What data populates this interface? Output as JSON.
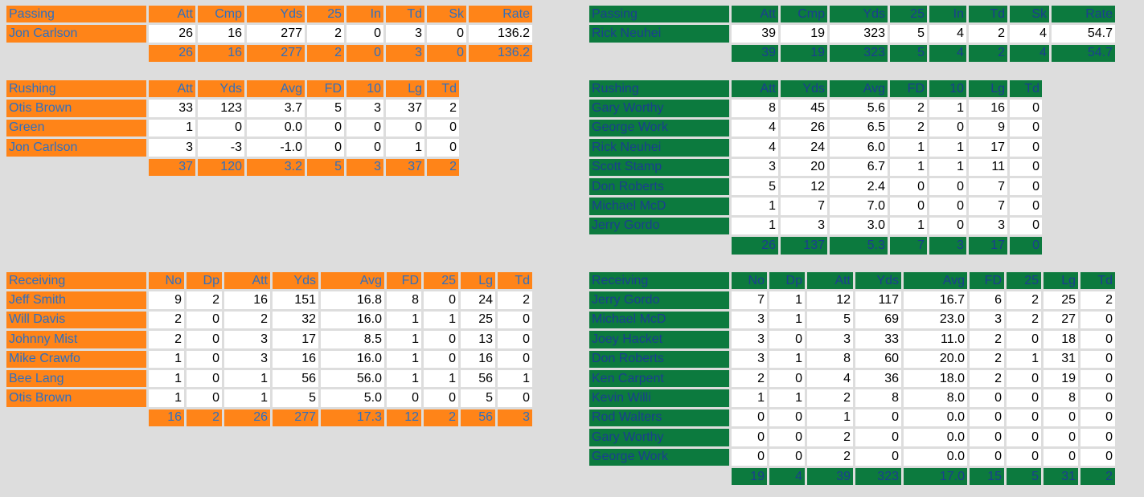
{
  "colors": {
    "team_a": "#ff8418",
    "team_b": "#0c7a3e",
    "background": "#dddddd"
  },
  "team_a": {
    "passing": {
      "title": "Passing",
      "headers": [
        "Att",
        "Cmp",
        "Yds",
        "25",
        "In",
        "Td",
        "Sk",
        "Rate"
      ],
      "rows": [
        {
          "name": "Jon Carlson",
          "values": [
            "26",
            "16",
            "277",
            "2",
            "0",
            "3",
            "0",
            "136.2"
          ]
        }
      ],
      "totals": [
        "26",
        "16",
        "277",
        "2",
        "0",
        "3",
        "0",
        "136.2"
      ]
    },
    "rushing": {
      "title": "Rushing",
      "headers": [
        "Att",
        "Yds",
        "Avg",
        "FD",
        "10",
        "Lg",
        "Td"
      ],
      "rows": [
        {
          "name": "Otis Brown",
          "values": [
            "33",
            "123",
            "3.7",
            "5",
            "3",
            "37",
            "2"
          ]
        },
        {
          "name": "Green",
          "values": [
            "1",
            "0",
            "0.0",
            "0",
            "0",
            "0",
            "0"
          ]
        },
        {
          "name": "Jon Carlson",
          "values": [
            "3",
            "-3",
            "-1.0",
            "0",
            "0",
            "1",
            "0"
          ]
        }
      ],
      "totals": [
        "37",
        "120",
        "3.2",
        "5",
        "3",
        "37",
        "2"
      ]
    },
    "receiving": {
      "title": "Receiving",
      "headers": [
        "No",
        "Dp",
        "Att",
        "Yds",
        "Avg",
        "FD",
        "25",
        "Lg",
        "Td"
      ],
      "rows": [
        {
          "name": "Jeff Smith",
          "values": [
            "9",
            "2",
            "16",
            "151",
            "16.8",
            "8",
            "0",
            "24",
            "2"
          ]
        },
        {
          "name": "Will Davis",
          "values": [
            "2",
            "0",
            "2",
            "32",
            "16.0",
            "1",
            "1",
            "25",
            "0"
          ]
        },
        {
          "name": "Johnny Mist",
          "values": [
            "2",
            "0",
            "3",
            "17",
            "8.5",
            "1",
            "0",
            "13",
            "0"
          ]
        },
        {
          "name": "Mike Crawfo",
          "values": [
            "1",
            "0",
            "3",
            "16",
            "16.0",
            "1",
            "0",
            "16",
            "0"
          ]
        },
        {
          "name": "Bee Lang",
          "values": [
            "1",
            "0",
            "1",
            "56",
            "56.0",
            "1",
            "1",
            "56",
            "1"
          ]
        },
        {
          "name": "Otis Brown",
          "values": [
            "1",
            "0",
            "1",
            "5",
            "5.0",
            "0",
            "0",
            "5",
            "0"
          ]
        }
      ],
      "totals": [
        "16",
        "2",
        "26",
        "277",
        "17.3",
        "12",
        "2",
        "56",
        "3"
      ]
    }
  },
  "team_b": {
    "passing": {
      "title": "Passing",
      "headers": [
        "Att",
        "Cmp",
        "Yds",
        "25",
        "In",
        "Td",
        "Sk",
        "Rate"
      ],
      "rows": [
        {
          "name": "Rick Neuhei",
          "values": [
            "39",
            "19",
            "323",
            "5",
            "4",
            "2",
            "4",
            "54.7"
          ]
        }
      ],
      "totals": [
        "39",
        "19",
        "323",
        "5",
        "4",
        "2",
        "4",
        "54.7"
      ]
    },
    "rushing": {
      "title": "Rushing",
      "headers": [
        "Att",
        "Yds",
        "Avg",
        "FD",
        "10",
        "Lg",
        "Td"
      ],
      "rows": [
        {
          "name": "Gary Worthy",
          "values": [
            "8",
            "45",
            "5.6",
            "2",
            "1",
            "16",
            "0"
          ]
        },
        {
          "name": "George Work",
          "values": [
            "4",
            "26",
            "6.5",
            "2",
            "0",
            "9",
            "0"
          ]
        },
        {
          "name": "Rick Neuhei",
          "values": [
            "4",
            "24",
            "6.0",
            "1",
            "1",
            "17",
            "0"
          ]
        },
        {
          "name": "Scott Stamp",
          "values": [
            "3",
            "20",
            "6.7",
            "1",
            "1",
            "11",
            "0"
          ]
        },
        {
          "name": "Don Roberts",
          "values": [
            "5",
            "12",
            "2.4",
            "0",
            "0",
            "7",
            "0"
          ]
        },
        {
          "name": "Michael McD",
          "values": [
            "1",
            "7",
            "7.0",
            "0",
            "0",
            "7",
            "0"
          ]
        },
        {
          "name": "Jerry Gordo",
          "values": [
            "1",
            "3",
            "3.0",
            "1",
            "0",
            "3",
            "0"
          ]
        }
      ],
      "totals": [
        "26",
        "137",
        "5.3",
        "7",
        "3",
        "17",
        "0"
      ]
    },
    "receiving": {
      "title": "Receiving",
      "headers": [
        "No",
        "Dp",
        "Att",
        "Yds",
        "Avg",
        "FD",
        "25",
        "Lg",
        "Td"
      ],
      "rows": [
        {
          "name": "Jerry Gordo",
          "values": [
            "7",
            "1",
            "12",
            "117",
            "16.7",
            "6",
            "2",
            "25",
            "2"
          ]
        },
        {
          "name": "Michael McD",
          "values": [
            "3",
            "1",
            "5",
            "69",
            "23.0",
            "3",
            "2",
            "27",
            "0"
          ]
        },
        {
          "name": "Joey Hacket",
          "values": [
            "3",
            "0",
            "3",
            "33",
            "11.0",
            "2",
            "0",
            "18",
            "0"
          ]
        },
        {
          "name": "Don Roberts",
          "values": [
            "3",
            "1",
            "8",
            "60",
            "20.0",
            "2",
            "1",
            "31",
            "0"
          ]
        },
        {
          "name": "Ken Carpent",
          "values": [
            "2",
            "0",
            "4",
            "36",
            "18.0",
            "2",
            "0",
            "19",
            "0"
          ]
        },
        {
          "name": "Kevin Willi",
          "values": [
            "1",
            "1",
            "2",
            "8",
            "8.0",
            "0",
            "0",
            "8",
            "0"
          ]
        },
        {
          "name": "Rod Walters",
          "values": [
            "0",
            "0",
            "1",
            "0",
            "0.0",
            "0",
            "0",
            "0",
            "0"
          ]
        },
        {
          "name": "Gary Worthy",
          "values": [
            "0",
            "0",
            "2",
            "0",
            "0.0",
            "0",
            "0",
            "0",
            "0"
          ]
        },
        {
          "name": "George Work",
          "values": [
            "0",
            "0",
            "2",
            "0",
            "0.0",
            "0",
            "0",
            "0",
            "0"
          ]
        }
      ],
      "totals": [
        "19",
        "4",
        "39",
        "323",
        "17.0",
        "15",
        "5",
        "31",
        "2"
      ]
    }
  }
}
